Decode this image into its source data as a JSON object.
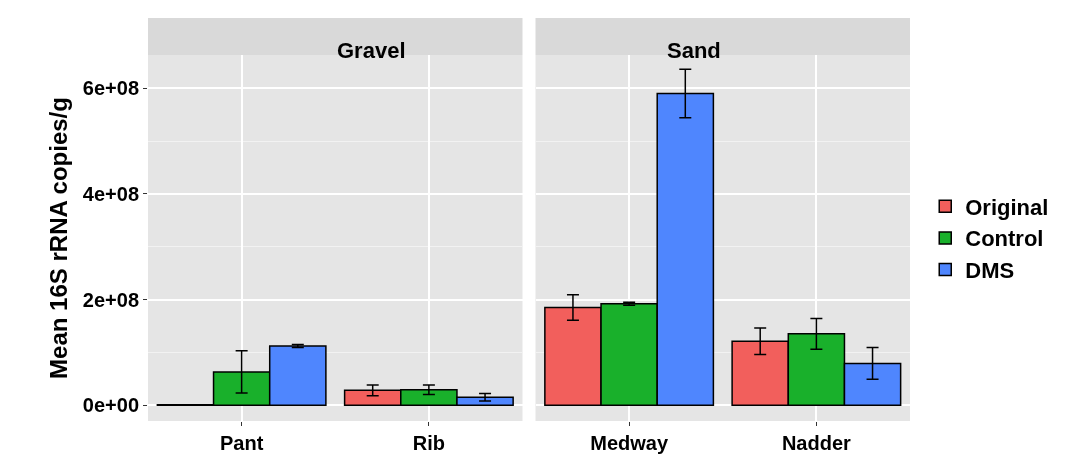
{
  "chart_data": [
    {
      "type": "bar",
      "title": "Gravel",
      "ylabel": "Mean 16S rRNA copies/g",
      "categories": [
        "Pant",
        "Rib"
      ],
      "series": [
        {
          "name": "Original",
          "color": "#f25f5c",
          "values": [
            1000000,
            28000000
          ],
          "errors": [
            null,
            10000000
          ]
        },
        {
          "name": "Control",
          "color": "#19b02b",
          "values": [
            63000000,
            29000000
          ],
          "errors": [
            40000000,
            9000000
          ]
        },
        {
          "name": "DMS",
          "color": "#4f86fe",
          "values": [
            112000000,
            15000000
          ],
          "errors": [
            3000000,
            7000000
          ]
        }
      ],
      "ylim": [
        -30000000,
        663000000
      ],
      "yticks": [
        {
          "value": 0,
          "label": "0e+00"
        },
        {
          "value": 200000000,
          "label": "2e+08"
        },
        {
          "value": 400000000,
          "label": "4e+08"
        },
        {
          "value": 600000000,
          "label": "6e+08"
        }
      ],
      "grid": true,
      "legend": "right"
    },
    {
      "type": "bar",
      "title": "Sand",
      "categories": [
        "Medway",
        "Nadder"
      ],
      "series": [
        {
          "name": "Original",
          "color": "#f25f5c",
          "values": [
            185000000,
            121000000
          ],
          "errors": [
            24000000,
            25000000
          ]
        },
        {
          "name": "Control",
          "color": "#19b02b",
          "values": [
            192000000,
            135000000
          ],
          "errors": [
            3000000,
            29000000
          ]
        },
        {
          "name": "DMS",
          "color": "#4f86fe",
          "values": [
            590000000,
            79000000
          ],
          "errors": [
            46000000,
            30000000
          ]
        }
      ],
      "ylim": [
        -30000000,
        663000000
      ],
      "yticks": [
        {
          "value": 0,
          "label": null
        },
        {
          "value": 200000000,
          "label": null
        },
        {
          "value": 400000000,
          "label": null
        },
        {
          "value": 600000000,
          "label": null
        }
      ],
      "grid": true,
      "legend": "right",
      "tick_labels": "x"
    }
  ]
}
